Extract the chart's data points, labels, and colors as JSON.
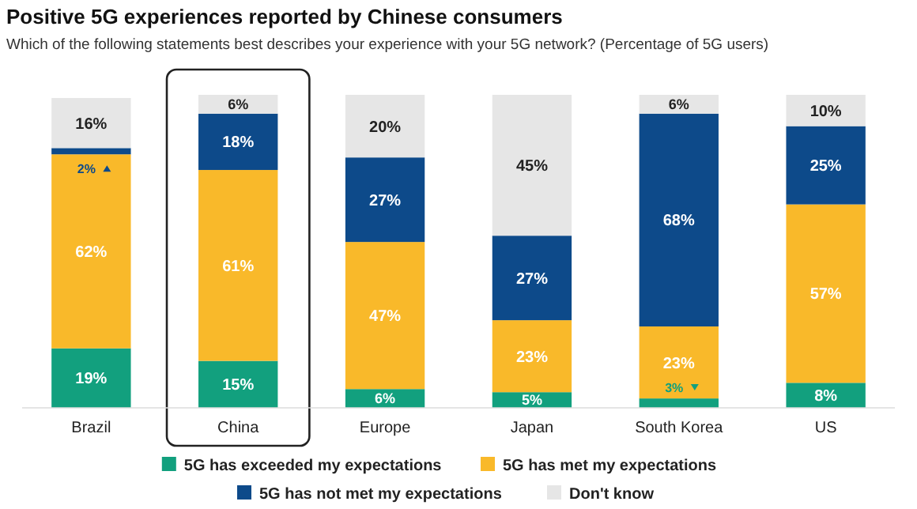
{
  "chart_data": {
    "type": "bar",
    "stacked": true,
    "legend": "bottom",
    "title": "Positive 5G experiences reported by Chinese consumers",
    "subtitle": "Which of the following statements best describes your experience with your 5G network? (Percentage of 5G users)",
    "categories": [
      "Brazil",
      "China",
      "Europe",
      "Japan",
      "South Korea",
      "US"
    ],
    "series": [
      {
        "name": "5G has exceeded my expectations",
        "color": "#12a07e",
        "values": [
          19,
          15,
          6,
          5,
          3,
          8
        ],
        "value_labels": [
          "19%",
          "15%",
          "6%",
          "5%",
          "3%",
          "8%"
        ]
      },
      {
        "name": "5G has met my expectations",
        "color": "#f9b92a",
        "values": [
          62,
          61,
          47,
          23,
          23,
          57
        ],
        "value_labels": [
          "62%",
          "61%",
          "47%",
          "23%",
          "23%",
          "57%"
        ]
      },
      {
        "name": "5G has not met my expectations",
        "color": "#0d4a8a",
        "values": [
          2,
          18,
          27,
          27,
          68,
          25
        ],
        "value_labels": [
          "2%",
          "18%",
          "27%",
          "27%",
          "68%",
          "25%"
        ]
      },
      {
        "name": "Don't know",
        "color": "#e6e6e6",
        "values": [
          16,
          6,
          20,
          45,
          6,
          10
        ],
        "value_labels": [
          "16%",
          "6%",
          "20%",
          "45%",
          "6%",
          "10%"
        ]
      }
    ]
  }
}
